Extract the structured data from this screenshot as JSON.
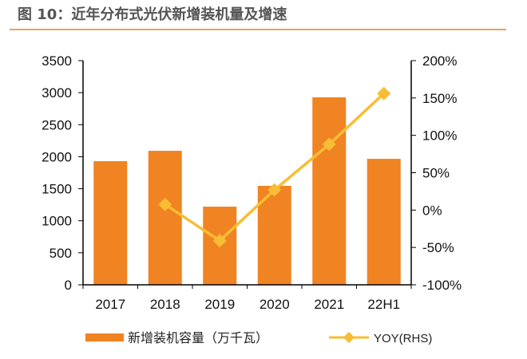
{
  "title": "图 10：近年分布式光伏新增装机量及增速",
  "chart_data": {
    "type": "bar+line",
    "categories": [
      "2017",
      "2018",
      "2019",
      "2020",
      "2021",
      "22H1"
    ],
    "series": [
      {
        "name": "新增装机容量（万千瓦）",
        "type": "bar",
        "axis": "left",
        "color": "#f08322",
        "values": [
          1930,
          2092,
          1220,
          1545,
          2927,
          1967
        ]
      },
      {
        "name": "YOY(RHS)",
        "type": "line",
        "axis": "right",
        "color": "#f8bd34",
        "values": [
          null,
          7.5,
          -41,
          27,
          88,
          156
        ]
      }
    ],
    "left_axis": {
      "ylim": [
        0,
        3500
      ],
      "ticks": [
        "0",
        "500",
        "1000",
        "1500",
        "2000",
        "2500",
        "3000",
        "3500"
      ]
    },
    "right_axis": {
      "ylim": [
        -100,
        200
      ],
      "ticks": [
        "-100%",
        "-50%",
        "0%",
        "50%",
        "100%",
        "150%",
        "200%"
      ]
    },
    "legend": "bottom",
    "grid": false
  }
}
